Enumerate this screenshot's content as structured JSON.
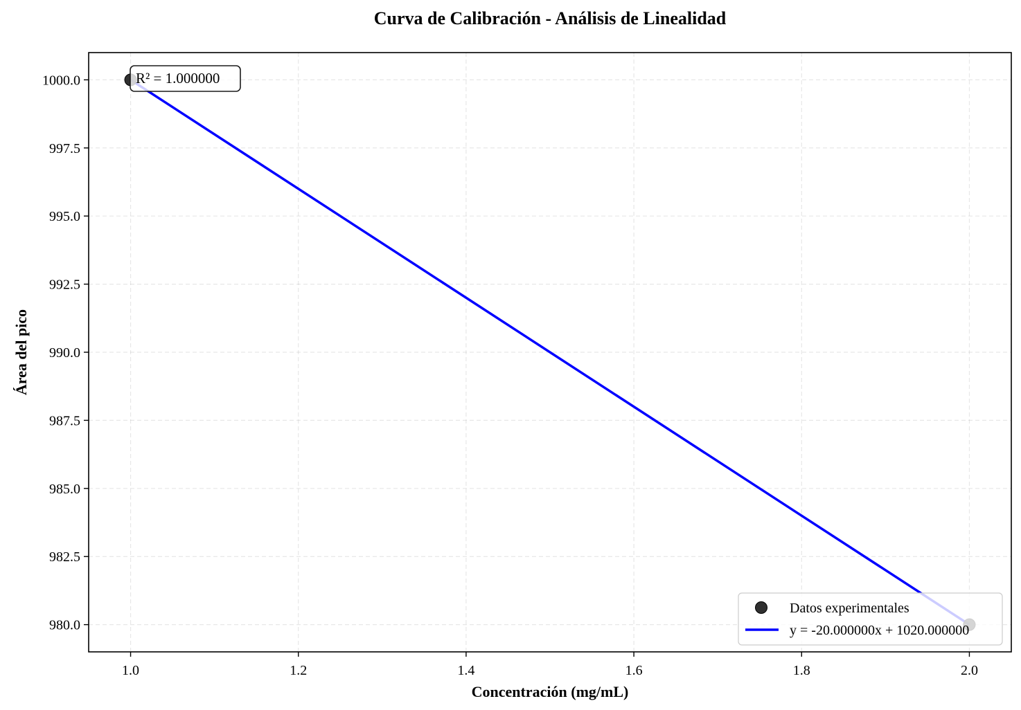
{
  "chart_data": {
    "type": "scatter",
    "title": "Curva de Calibración - Análisis de Linealidad",
    "xlabel": "Concentración (mg/mL)",
    "ylabel": "Área del pico",
    "xlim": [
      0.95,
      2.05
    ],
    "ylim": [
      979.0,
      1001.0
    ],
    "x_ticks": [
      1.0,
      1.2,
      1.4,
      1.6,
      1.8,
      2.0
    ],
    "x_tick_labels": [
      "1.0",
      "1.2",
      "1.4",
      "1.6",
      "1.8",
      "2.0"
    ],
    "y_ticks": [
      980.0,
      982.5,
      985.0,
      987.5,
      990.0,
      992.5,
      995.0,
      997.5,
      1000.0
    ],
    "y_tick_labels": [
      "980.0",
      "982.5",
      "985.0",
      "987.5",
      "990.0",
      "992.5",
      "995.0",
      "997.5",
      "1000.0"
    ],
    "grid": true,
    "legend_position": "lower-right",
    "series": [
      {
        "name": "Datos experimentales",
        "kind": "scatter",
        "color": "#1a1a1a",
        "x": [
          1.0,
          2.0
        ],
        "y": [
          1000.0,
          980.0
        ]
      },
      {
        "name": "y = -20.000000x + 1020.000000",
        "kind": "line",
        "color": "#0000ff",
        "x": [
          1.0,
          2.0
        ],
        "y": [
          1000.0,
          980.0
        ]
      }
    ],
    "annotations": [
      {
        "text": "R² = 1.000000",
        "position": "top-left"
      }
    ]
  }
}
